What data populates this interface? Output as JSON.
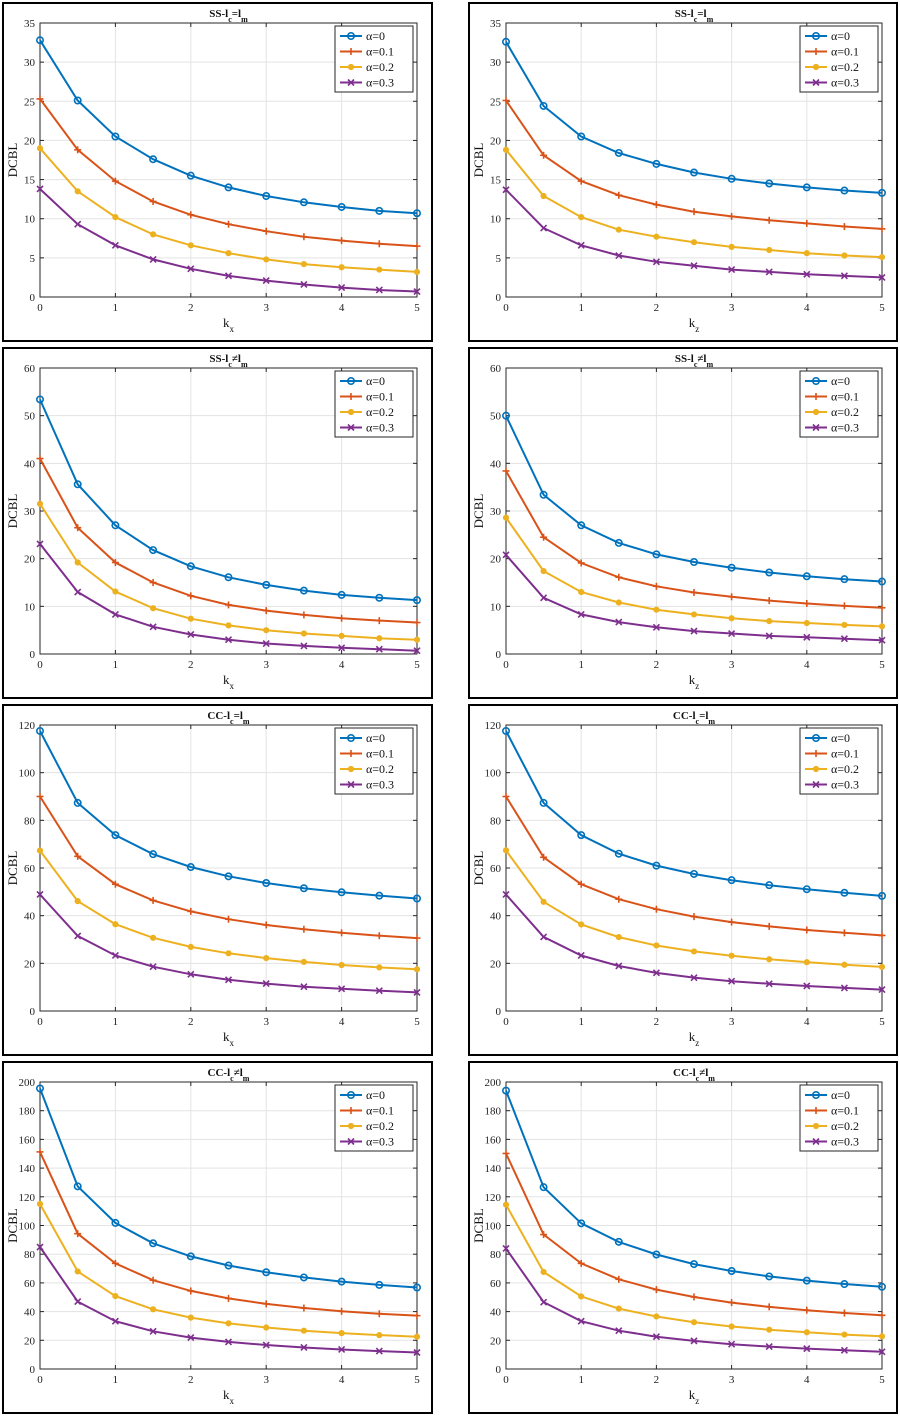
{
  "colors": {
    "series": [
      "#0072BD",
      "#D95319",
      "#EDB120",
      "#7E2F8E"
    ],
    "grid": "#e3e3e3",
    "frame": "#000000"
  },
  "legend_position": "top-right",
  "chart_data": [
    {
      "type": "line",
      "title": {
        "base": "SS-l",
        "sub1": "c",
        "rel": "=l",
        "sub2": "m"
      },
      "xlabel": {
        "base": "k",
        "sub": "x"
      },
      "ylabel": "DCBL",
      "xlim": [
        0,
        5
      ],
      "ylim": [
        0,
        35
      ],
      "xticks": [
        0,
        1,
        2,
        3,
        4,
        5
      ],
      "yticks": [
        0,
        5,
        10,
        15,
        20,
        25,
        30,
        35
      ],
      "grid": true,
      "x": [
        0,
        0.5,
        1,
        1.5,
        2,
        2.5,
        3,
        3.5,
        4,
        4.5,
        5
      ],
      "series": [
        {
          "name": "α=0",
          "marker": "circle",
          "values": [
            32.8,
            25.1,
            20.5,
            17.6,
            15.5,
            14.0,
            12.9,
            12.1,
            11.5,
            11.0,
            10.7
          ]
        },
        {
          "name": "α=0.1",
          "marker": "plus",
          "values": [
            25.3,
            18.8,
            14.8,
            12.2,
            10.5,
            9.3,
            8.4,
            7.7,
            7.2,
            6.8,
            6.5
          ]
        },
        {
          "name": "α=0.2",
          "marker": "dot",
          "values": [
            19.0,
            13.5,
            10.2,
            8.0,
            6.6,
            5.6,
            4.8,
            4.2,
            3.8,
            3.5,
            3.2
          ]
        },
        {
          "name": "α=0.3",
          "marker": "x",
          "values": [
            13.8,
            9.3,
            6.6,
            4.8,
            3.6,
            2.7,
            2.1,
            1.6,
            1.2,
            0.9,
            0.7
          ]
        }
      ]
    },
    {
      "type": "line",
      "title": {
        "base": "SS-l",
        "sub1": "c",
        "rel": "=l",
        "sub2": "m"
      },
      "xlabel": {
        "base": "k",
        "sub": "z"
      },
      "ylabel": "DCBL",
      "xlim": [
        0,
        5
      ],
      "ylim": [
        0,
        35
      ],
      "xticks": [
        0,
        1,
        2,
        3,
        4,
        5
      ],
      "yticks": [
        0,
        5,
        10,
        15,
        20,
        25,
        30,
        35
      ],
      "grid": true,
      "x": [
        0,
        0.5,
        1,
        1.5,
        2,
        2.5,
        3,
        3.5,
        4,
        4.5,
        5
      ],
      "series": [
        {
          "name": "α=0",
          "marker": "circle",
          "values": [
            32.6,
            24.4,
            20.5,
            18.4,
            17.0,
            15.9,
            15.1,
            14.5,
            14.0,
            13.6,
            13.3
          ]
        },
        {
          "name": "α=0.1",
          "marker": "plus",
          "values": [
            25.1,
            18.1,
            14.8,
            13.0,
            11.8,
            10.9,
            10.3,
            9.8,
            9.4,
            9.0,
            8.7
          ]
        },
        {
          "name": "α=0.2",
          "marker": "dot",
          "values": [
            18.8,
            12.9,
            10.2,
            8.6,
            7.7,
            7.0,
            6.4,
            6.0,
            5.6,
            5.3,
            5.1
          ]
        },
        {
          "name": "α=0.3",
          "marker": "x",
          "values": [
            13.7,
            8.8,
            6.6,
            5.3,
            4.5,
            4.0,
            3.5,
            3.2,
            2.9,
            2.7,
            2.5
          ]
        }
      ]
    },
    {
      "type": "line",
      "title": {
        "base": "SS-l",
        "sub1": "c",
        "rel": "≠l",
        "sub2": "m"
      },
      "xlabel": {
        "base": "k",
        "sub": "x"
      },
      "ylabel": "DCBL",
      "xlim": [
        0,
        5
      ],
      "ylim": [
        0,
        60
      ],
      "xticks": [
        0,
        1,
        2,
        3,
        4,
        5
      ],
      "yticks": [
        0,
        10,
        20,
        30,
        40,
        50,
        60
      ],
      "grid": true,
      "x": [
        0,
        0.5,
        1,
        1.5,
        2,
        2.5,
        3,
        3.5,
        4,
        4.5,
        5
      ],
      "series": [
        {
          "name": "α=0",
          "marker": "circle",
          "values": [
            53.4,
            35.6,
            27.0,
            21.8,
            18.4,
            16.1,
            14.5,
            13.3,
            12.4,
            11.8,
            11.3
          ]
        },
        {
          "name": "α=0.1",
          "marker": "plus",
          "values": [
            41.0,
            26.5,
            19.2,
            15.0,
            12.2,
            10.3,
            9.1,
            8.2,
            7.5,
            7.0,
            6.6
          ]
        },
        {
          "name": "α=0.2",
          "marker": "dot",
          "values": [
            31.5,
            19.2,
            13.1,
            9.6,
            7.4,
            6.0,
            5.0,
            4.3,
            3.8,
            3.3,
            3.0
          ]
        },
        {
          "name": "α=0.3",
          "marker": "x",
          "values": [
            23.1,
            13.0,
            8.3,
            5.7,
            4.1,
            3.0,
            2.2,
            1.7,
            1.3,
            1.0,
            0.7
          ]
        }
      ]
    },
    {
      "type": "line",
      "title": {
        "base": "SS-l",
        "sub1": "c",
        "rel": "≠l",
        "sub2": "m"
      },
      "xlabel": {
        "base": "k",
        "sub": "z"
      },
      "ylabel": "DCBL",
      "xlim": [
        0,
        5
      ],
      "ylim": [
        0,
        60
      ],
      "xticks": [
        0,
        1,
        2,
        3,
        4,
        5
      ],
      "yticks": [
        0,
        10,
        20,
        30,
        40,
        50,
        60
      ],
      "grid": true,
      "x": [
        0,
        0.5,
        1,
        1.5,
        2,
        2.5,
        3,
        3.5,
        4,
        4.5,
        5
      ],
      "series": [
        {
          "name": "α=0",
          "marker": "circle",
          "values": [
            50.0,
            33.4,
            27.0,
            23.3,
            20.9,
            19.3,
            18.1,
            17.1,
            16.3,
            15.7,
            15.2
          ]
        },
        {
          "name": "α=0.1",
          "marker": "plus",
          "values": [
            38.4,
            24.5,
            19.1,
            16.1,
            14.2,
            12.9,
            12.0,
            11.2,
            10.6,
            10.1,
            9.7
          ]
        },
        {
          "name": "α=0.2",
          "marker": "dot",
          "values": [
            28.6,
            17.4,
            13.0,
            10.8,
            9.3,
            8.3,
            7.5,
            6.9,
            6.5,
            6.1,
            5.8
          ]
        },
        {
          "name": "α=0.3",
          "marker": "x",
          "values": [
            20.8,
            11.8,
            8.3,
            6.7,
            5.6,
            4.8,
            4.3,
            3.8,
            3.5,
            3.2,
            2.9
          ]
        }
      ]
    },
    {
      "type": "line",
      "title": {
        "base": "CC-l",
        "sub1": "c",
        "rel": "=l",
        "sub2": "m"
      },
      "xlabel": {
        "base": "k",
        "sub": "x"
      },
      "ylabel": "DCBL",
      "xlim": [
        0,
        5
      ],
      "ylim": [
        0,
        120
      ],
      "xticks": [
        0,
        1,
        2,
        3,
        4,
        5
      ],
      "yticks": [
        0,
        20,
        40,
        60,
        80,
        100,
        120
      ],
      "grid": true,
      "x": [
        0,
        0.5,
        1,
        1.5,
        2,
        2.5,
        3,
        3.5,
        4,
        4.5,
        5
      ],
      "series": [
        {
          "name": "α=0",
          "marker": "circle",
          "values": [
            117.5,
            87.3,
            73.8,
            65.8,
            60.4,
            56.5,
            53.7,
            51.5,
            49.8,
            48.4,
            47.2
          ]
        },
        {
          "name": "α=0.1",
          "marker": "plus",
          "values": [
            90.0,
            64.9,
            53.2,
            46.4,
            41.8,
            38.5,
            36.1,
            34.3,
            32.8,
            31.6,
            30.6
          ]
        },
        {
          "name": "α=0.2",
          "marker": "dot",
          "values": [
            67.3,
            46.1,
            36.4,
            30.7,
            26.9,
            24.2,
            22.2,
            20.6,
            19.3,
            18.3,
            17.5
          ]
        },
        {
          "name": "α=0.3",
          "marker": "x",
          "values": [
            48.9,
            31.5,
            23.3,
            18.6,
            15.4,
            13.1,
            11.5,
            10.2,
            9.3,
            8.5,
            7.8
          ]
        }
      ]
    },
    {
      "type": "line",
      "title": {
        "base": "CC-l",
        "sub1": "c",
        "rel": "=l",
        "sub2": "m"
      },
      "xlabel": {
        "base": "k",
        "sub": "z"
      },
      "ylabel": "DCBL",
      "xlim": [
        0,
        5
      ],
      "ylim": [
        0,
        120
      ],
      "xticks": [
        0,
        1,
        2,
        3,
        4,
        5
      ],
      "yticks": [
        0,
        20,
        40,
        60,
        80,
        100,
        120
      ],
      "grid": true,
      "x": [
        0,
        0.5,
        1,
        1.5,
        2,
        2.5,
        3,
        3.5,
        4,
        4.5,
        5
      ],
      "series": [
        {
          "name": "α=0",
          "marker": "circle",
          "values": [
            117.5,
            87.3,
            73.8,
            66.0,
            61.0,
            57.5,
            54.9,
            52.8,
            51.1,
            49.6,
            48.3
          ]
        },
        {
          "name": "α=0.1",
          "marker": "plus",
          "values": [
            90.0,
            64.5,
            53.2,
            46.9,
            42.7,
            39.6,
            37.3,
            35.5,
            34.0,
            32.8,
            31.7
          ]
        },
        {
          "name": "α=0.2",
          "marker": "dot",
          "values": [
            67.4,
            45.8,
            36.3,
            31.0,
            27.5,
            25.0,
            23.2,
            21.7,
            20.5,
            19.4,
            18.5
          ]
        },
        {
          "name": "α=0.3",
          "marker": "x",
          "values": [
            48.9,
            31.1,
            23.3,
            18.9,
            16.0,
            14.0,
            12.5,
            11.4,
            10.5,
            9.7,
            9.0
          ]
        }
      ]
    },
    {
      "type": "line",
      "title": {
        "base": "CC-l",
        "sub1": "c",
        "rel": "≠l",
        "sub2": "m"
      },
      "xlabel": {
        "base": "k",
        "sub": "x"
      },
      "ylabel": "DCBL",
      "xlim": [
        0,
        5
      ],
      "ylim": [
        0,
        200
      ],
      "xticks": [
        0,
        1,
        2,
        3,
        4,
        5
      ],
      "yticks": [
        0,
        20,
        40,
        60,
        80,
        100,
        120,
        140,
        160,
        180,
        200
      ],
      "grid": true,
      "x": [
        0,
        0.5,
        1,
        1.5,
        2,
        2.5,
        3,
        3.5,
        4,
        4.5,
        5
      ],
      "series": [
        {
          "name": "α=0",
          "marker": "circle",
          "values": [
            195.5,
            127.3,
            101.8,
            87.6,
            78.5,
            72.1,
            67.4,
            63.8,
            60.9,
            58.6,
            56.8
          ]
        },
        {
          "name": "α=0.1",
          "marker": "plus",
          "values": [
            151.3,
            94.3,
            73.6,
            61.9,
            54.4,
            49.2,
            45.4,
            42.5,
            40.2,
            38.5,
            37.2
          ]
        },
        {
          "name": "α=0.2",
          "marker": "dot",
          "values": [
            115.0,
            68.0,
            50.8,
            41.6,
            35.8,
            31.8,
            28.9,
            26.7,
            25.0,
            23.6,
            22.5
          ]
        },
        {
          "name": "α=0.3",
          "marker": "x",
          "values": [
            85.0,
            47.0,
            33.3,
            26.3,
            21.9,
            18.9,
            16.7,
            15.0,
            13.6,
            12.5,
            11.5
          ]
        }
      ]
    },
    {
      "type": "line",
      "title": {
        "base": "CC-l",
        "sub1": "c",
        "rel": "≠l",
        "sub2": "m"
      },
      "xlabel": {
        "base": "k",
        "sub": "z"
      },
      "ylabel": "DCBL",
      "xlim": [
        0,
        5
      ],
      "ylim": [
        0,
        200
      ],
      "xticks": [
        0,
        1,
        2,
        3,
        4,
        5
      ],
      "yticks": [
        0,
        20,
        40,
        60,
        80,
        100,
        120,
        140,
        160,
        180,
        200
      ],
      "grid": true,
      "x": [
        0,
        0.5,
        1,
        1.5,
        2,
        2.5,
        3,
        3.5,
        4,
        4.5,
        5
      ],
      "series": [
        {
          "name": "α=0",
          "marker": "circle",
          "values": [
            194.0,
            126.7,
            101.5,
            88.6,
            79.8,
            73.1,
            68.3,
            64.5,
            61.6,
            59.2,
            57.3
          ]
        },
        {
          "name": "α=0.1",
          "marker": "plus",
          "values": [
            150.2,
            93.7,
            73.6,
            62.5,
            55.3,
            50.2,
            46.3,
            43.3,
            41.0,
            39.0,
            37.4
          ]
        },
        {
          "name": "α=0.2",
          "marker": "dot",
          "values": [
            114.5,
            67.6,
            50.6,
            42.1,
            36.6,
            32.6,
            29.6,
            27.4,
            25.6,
            24.0,
            22.8
          ]
        },
        {
          "name": "α=0.3",
          "marker": "x",
          "values": [
            84.0,
            46.6,
            33.3,
            26.7,
            22.5,
            19.6,
            17.3,
            15.6,
            14.2,
            13.0,
            12.0
          ]
        }
      ]
    }
  ]
}
